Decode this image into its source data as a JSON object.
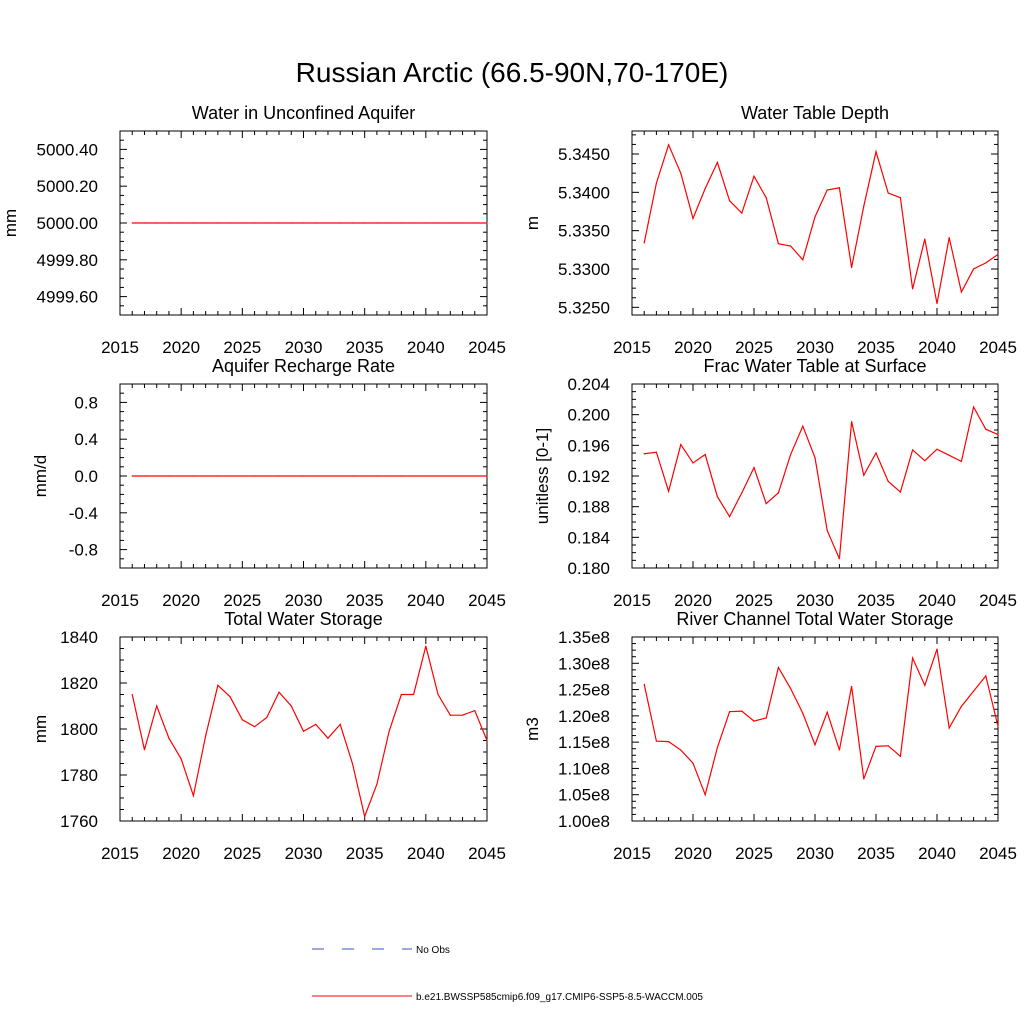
{
  "figure": {
    "title": "Russian Arctic (66.5-90N,70-170E)"
  },
  "legend": {
    "entries": [
      {
        "label": "No Obs",
        "color": "#3b4fc4",
        "dash": true
      },
      {
        "label": "b.e21.BWSSP585cmip6.f09_g17.CMIP6-SSP5-8.5-WACCM.005",
        "color": "#ff0000",
        "dash": false
      }
    ]
  },
  "chart_data": [
    {
      "type": "line",
      "title": "Water in Unconfined Aquifer",
      "ylabel": "mm",
      "xlabel": "",
      "xlim": [
        2015,
        2045
      ],
      "ylim": [
        4999.5,
        5000.5
      ],
      "xticks": [
        2015,
        2020,
        2025,
        2030,
        2035,
        2040,
        2045
      ],
      "xtick_labels": [
        "2015",
        "2020",
        "2025",
        "2030",
        "2035",
        "2040",
        "2045"
      ],
      "yticks": [
        4999.6,
        4999.8,
        5000.0,
        5000.2,
        5000.4
      ],
      "ytick_labels": [
        "4999.60",
        "4999.80",
        "5000.00",
        "5000.20",
        "5000.40"
      ],
      "series": [
        {
          "color": "#ff0000",
          "x": [
            2016,
            2017,
            2018,
            2019,
            2020,
            2021,
            2022,
            2023,
            2024,
            2025,
            2026,
            2027,
            2028,
            2029,
            2030,
            2031,
            2032,
            2033,
            2034,
            2035,
            2036,
            2037,
            2038,
            2039,
            2040,
            2041,
            2042,
            2043,
            2044,
            2045
          ],
          "y": [
            5000,
            5000,
            5000,
            5000,
            5000,
            5000,
            5000,
            5000,
            5000,
            5000,
            5000,
            5000,
            5000,
            5000,
            5000,
            5000,
            5000,
            5000,
            5000,
            5000,
            5000,
            5000,
            5000,
            5000,
            5000,
            5000,
            5000,
            5000,
            5000,
            5000
          ]
        }
      ]
    },
    {
      "type": "line",
      "title": "Water Table Depth",
      "ylabel": "m",
      "xlabel": "",
      "xlim": [
        2015,
        2045
      ],
      "ylim": [
        5.324,
        5.348
      ],
      "xticks": [
        2015,
        2020,
        2025,
        2030,
        2035,
        2040,
        2045
      ],
      "xtick_labels": [
        "2015",
        "2020",
        "2025",
        "2030",
        "2035",
        "2040",
        "2045"
      ],
      "yticks": [
        5.325,
        5.33,
        5.335,
        5.34,
        5.345
      ],
      "ytick_labels": [
        "5.3250",
        "5.3300",
        "5.3350",
        "5.3400",
        "5.3450"
      ],
      "series": [
        {
          "color": "#ff0000",
          "x": [
            2016,
            2017,
            2018,
            2019,
            2020,
            2021,
            2022,
            2023,
            2024,
            2025,
            2026,
            2027,
            2028,
            2029,
            2030,
            2031,
            2032,
            2033,
            2034,
            2035,
            2036,
            2037,
            2038,
            2039,
            2040,
            2041,
            2042,
            2043,
            2044,
            2045
          ],
          "y": [
            5.3334,
            5.3412,
            5.3462,
            5.3425,
            5.3366,
            5.3405,
            5.3439,
            5.3389,
            5.3373,
            5.3421,
            5.3393,
            5.3333,
            5.333,
            5.3312,
            5.3368,
            5.3403,
            5.3406,
            5.3302,
            5.3382,
            5.3453,
            5.3399,
            5.3393,
            5.3274,
            5.3339,
            5.3255,
            5.3341,
            5.327,
            5.33,
            5.3308,
            5.3319
          ]
        }
      ]
    },
    {
      "type": "line",
      "title": "Aquifer Recharge Rate",
      "ylabel": "mm/d",
      "xlabel": "",
      "xlim": [
        2015,
        2045
      ],
      "ylim": [
        -1.0,
        1.0
      ],
      "xticks": [
        2015,
        2020,
        2025,
        2030,
        2035,
        2040,
        2045
      ],
      "xtick_labels": [
        "2015",
        "2020",
        "2025",
        "2030",
        "2035",
        "2040",
        "2045"
      ],
      "yticks": [
        -0.8,
        -0.4,
        0.0,
        0.4,
        0.8
      ],
      "ytick_labels": [
        "-0.8",
        "-0.4",
        "0.0",
        "0.4",
        "0.8"
      ],
      "series": [
        {
          "color": "#ff0000",
          "x": [
            2016,
            2017,
            2018,
            2019,
            2020,
            2021,
            2022,
            2023,
            2024,
            2025,
            2026,
            2027,
            2028,
            2029,
            2030,
            2031,
            2032,
            2033,
            2034,
            2035,
            2036,
            2037,
            2038,
            2039,
            2040,
            2041,
            2042,
            2043,
            2044,
            2045
          ],
          "y": [
            0,
            0,
            0,
            0,
            0,
            0,
            0,
            0,
            0,
            0,
            0,
            0,
            0,
            0,
            0,
            0,
            0,
            0,
            0,
            0,
            0,
            0,
            0,
            0,
            0,
            0,
            0,
            0,
            0,
            0
          ]
        }
      ]
    },
    {
      "type": "line",
      "title": "Frac Water Table at Surface",
      "ylabel": "unitless [0-1]",
      "xlabel": "",
      "xlim": [
        2015,
        2045
      ],
      "ylim": [
        0.18,
        0.204
      ],
      "xticks": [
        2015,
        2020,
        2025,
        2030,
        2035,
        2040,
        2045
      ],
      "xtick_labels": [
        "2015",
        "2020",
        "2025",
        "2030",
        "2035",
        "2040",
        "2045"
      ],
      "yticks": [
        0.18,
        0.184,
        0.188,
        0.192,
        0.196,
        0.2,
        0.204
      ],
      "ytick_labels": [
        "0.180",
        "0.184",
        "0.188",
        "0.192",
        "0.196",
        "0.200",
        "0.204"
      ],
      "series": [
        {
          "color": "#ff0000",
          "x": [
            2016,
            2017,
            2018,
            2019,
            2020,
            2021,
            2022,
            2023,
            2024,
            2025,
            2026,
            2027,
            2028,
            2029,
            2030,
            2031,
            2032,
            2033,
            2034,
            2035,
            2036,
            2037,
            2038,
            2039,
            2040,
            2041,
            2042,
            2043,
            2044,
            2045
          ],
          "y": [
            0.1949,
            0.1951,
            0.19,
            0.1961,
            0.1937,
            0.1948,
            0.1893,
            0.1867,
            0.1898,
            0.1931,
            0.1884,
            0.1898,
            0.1948,
            0.1985,
            0.1944,
            0.1849,
            0.1812,
            0.1991,
            0.1921,
            0.195,
            0.1913,
            0.1899,
            0.1954,
            0.194,
            0.1955,
            0.1947,
            0.1939,
            0.201,
            0.1981,
            0.1974
          ]
        }
      ]
    },
    {
      "type": "line",
      "title": "Total Water Storage",
      "ylabel": "mm",
      "xlabel": "",
      "xlim": [
        2015,
        2045
      ],
      "ylim": [
        1760,
        1840
      ],
      "xticks": [
        2015,
        2020,
        2025,
        2030,
        2035,
        2040,
        2045
      ],
      "xtick_labels": [
        "2015",
        "2020",
        "2025",
        "2030",
        "2035",
        "2040",
        "2045"
      ],
      "yticks": [
        1760,
        1780,
        1800,
        1820,
        1840
      ],
      "ytick_labels": [
        "1760",
        "1780",
        "1800",
        "1820",
        "1840"
      ],
      "series": [
        {
          "color": "#ff0000",
          "x": [
            2016,
            2017,
            2018,
            2019,
            2020,
            2021,
            2022,
            2023,
            2024,
            2025,
            2026,
            2027,
            2028,
            2029,
            2030,
            2031,
            2032,
            2033,
            2034,
            2035,
            2036,
            2037,
            2038,
            2039,
            2040,
            2041,
            2042,
            2043,
            2044,
            2045
          ],
          "y": [
            1815,
            1791,
            1810,
            1796,
            1787,
            1771,
            1797,
            1819,
            1814,
            1804,
            1801,
            1805,
            1816,
            1810,
            1799,
            1802,
            1796,
            1802,
            1785,
            1762,
            1776,
            1799,
            1815,
            1815,
            1836,
            1815,
            1806,
            1806,
            1808,
            1795
          ]
        }
      ]
    },
    {
      "type": "line",
      "title": "River Channel Total Water Storage",
      "ylabel": "m3",
      "xlabel": "",
      "xlim": [
        2015,
        2045
      ],
      "ylim": [
        100000000.0,
        135000000.0
      ],
      "xticks": [
        2015,
        2020,
        2025,
        2030,
        2035,
        2040,
        2045
      ],
      "xtick_labels": [
        "2015",
        "2020",
        "2025",
        "2030",
        "2035",
        "2040",
        "2045"
      ],
      "yticks": [
        100000000.0,
        105000000.0,
        110000000.0,
        115000000.0,
        120000000.0,
        125000000.0,
        130000000.0,
        135000000.0
      ],
      "ytick_labels": [
        "1.00e8",
        "1.05e8",
        "1.10e8",
        "1.15e8",
        "1.20e8",
        "1.25e8",
        "1.30e8",
        "1.35e8"
      ],
      "series": [
        {
          "color": "#ff0000",
          "x": [
            2016,
            2017,
            2018,
            2019,
            2020,
            2021,
            2022,
            2023,
            2024,
            2025,
            2026,
            2027,
            2028,
            2029,
            2030,
            2031,
            2032,
            2033,
            2034,
            2035,
            2036,
            2037,
            2038,
            2039,
            2040,
            2041,
            2042,
            2043,
            2044,
            2045
          ],
          "y": [
            126000000.0,
            115200000.0,
            115100000.0,
            113500000.0,
            111000000.0,
            105000000.0,
            114000000.0,
            120800000.0,
            120900000.0,
            119000000.0,
            119600000.0,
            129200000.0,
            125200000.0,
            120500000.0,
            114500000.0,
            120700000.0,
            113500000.0,
            125600000.0,
            108000000.0,
            114200000.0,
            114300000.0,
            112300000.0,
            131000000.0,
            125800000.0,
            132700000.0,
            117700000.0,
            121800000.0,
            124700000.0,
            127600000.0,
            118000000.0
          ]
        }
      ]
    }
  ]
}
